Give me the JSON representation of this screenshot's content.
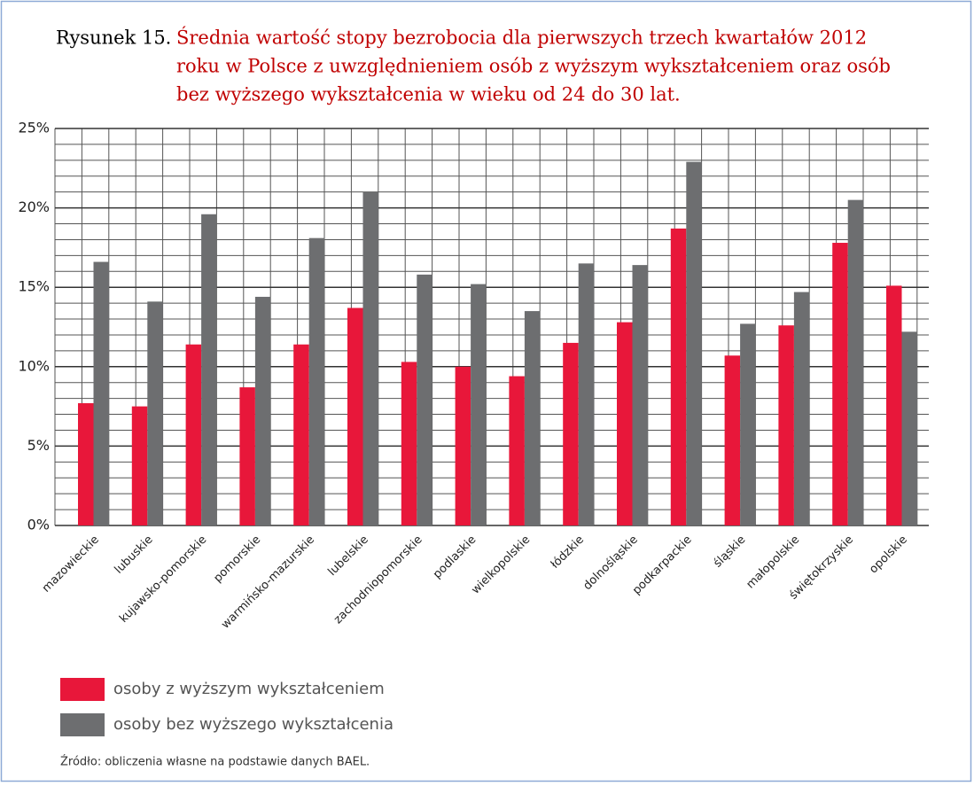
{
  "chart_data": {
    "type": "bar",
    "figure_label": "Rysunek 15.",
    "title": [
      "Średnia wartość stopy bezrobocia dla pierwszych trzech kwartałów 2012",
      "roku w Polsce z uwzględnieniem osób z wyższym wykształceniem oraz osób",
      "bez wyższego wykształcenia w wieku od 24 do 30 lat."
    ],
    "categories": [
      "mazowieckie",
      "lubuskie",
      "kujawsko-pomorskie",
      "pomorskie",
      "warmińsko-mazurskie",
      "lubelskie",
      "zachodniopomorskie",
      "podlaskie",
      "wielkopolskie",
      "łódzkie",
      "dolnośląskie",
      "podkarpackie",
      "śląskie",
      "małopolskie",
      "świętokrzyskie",
      "opolskie"
    ],
    "series": [
      {
        "name": "osoby z wyższym wykształceniem",
        "color": "#e8173a",
        "values": [
          7.7,
          7.5,
          11.4,
          8.7,
          11.4,
          13.7,
          10.3,
          10.0,
          9.4,
          11.5,
          12.8,
          18.7,
          10.7,
          12.6,
          17.8,
          15.1
        ]
      },
      {
        "name": "osoby bez wyższego wykształcenia",
        "color": "#6d6e70",
        "values": [
          16.6,
          14.1,
          19.6,
          14.4,
          18.1,
          21.0,
          15.8,
          15.2,
          13.5,
          16.5,
          16.4,
          22.9,
          12.7,
          14.7,
          20.5,
          12.2
        ]
      }
    ],
    "ylim": [
      0,
      25
    ],
    "yticks": [
      {
        "value": 0,
        "label": "0%"
      },
      {
        "value": 5,
        "label": "5%"
      },
      {
        "value": 10,
        "label": "10%"
      },
      {
        "value": 15,
        "label": "15%"
      },
      {
        "value": 20,
        "label": "20%"
      },
      {
        "value": 25,
        "label": "25%"
      }
    ],
    "minor_yticks": [
      1,
      2,
      3,
      4,
      6,
      7,
      8,
      9,
      11,
      12,
      13,
      14,
      16,
      17,
      18,
      19,
      21,
      22,
      23,
      24
    ],
    "grid": true,
    "source": "Źródło: obliczenia własne na podstawie danych BAEL."
  }
}
